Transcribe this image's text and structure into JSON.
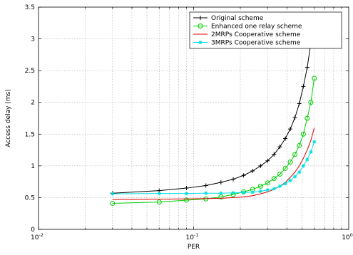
{
  "chart_data": {
    "type": "line",
    "title": "",
    "xlabel": "PER",
    "ylabel": "Access delay (ms)",
    "xscale": "log",
    "xlim": [
      0.01,
      1
    ],
    "ylim": [
      0,
      3.5
    ],
    "grid": true,
    "legend_position": "top-right",
    "x_ticks": [
      {
        "value": 0.01,
        "base": "10",
        "exp": "-2"
      },
      {
        "value": 0.1,
        "base": "10",
        "exp": "-1"
      },
      {
        "value": 1,
        "base": "10",
        "exp": "0"
      }
    ],
    "y_ticks": [
      {
        "value": 0,
        "label": "0"
      },
      {
        "value": 0.5,
        "label": "0.5"
      },
      {
        "value": 1,
        "label": "1"
      },
      {
        "value": 1.5,
        "label": "1.5"
      },
      {
        "value": 2,
        "label": "2"
      },
      {
        "value": 2.5,
        "label": "2.5"
      },
      {
        "value": 3,
        "label": "3"
      },
      {
        "value": 3.5,
        "label": "3.5"
      }
    ],
    "series": [
      {
        "name": "Original scheme",
        "color": "#000000",
        "marker": "plus",
        "x": [
          0.03,
          0.06,
          0.09,
          0.12,
          0.15,
          0.18,
          0.21,
          0.24,
          0.27,
          0.3,
          0.33,
          0.36,
          0.39,
          0.42,
          0.45,
          0.48,
          0.51,
          0.54,
          0.57,
          0.6
        ],
        "y": [
          0.57,
          0.61,
          0.65,
          0.69,
          0.74,
          0.79,
          0.85,
          0.92,
          1.0,
          1.08,
          1.18,
          1.3,
          1.43,
          1.58,
          1.76,
          1.98,
          2.25,
          2.55,
          2.93,
          3.37
        ]
      },
      {
        "name": "Enhanced one relay scheme",
        "color": "#00cc00",
        "marker": "circle",
        "x": [
          0.03,
          0.06,
          0.09,
          0.12,
          0.15,
          0.18,
          0.21,
          0.24,
          0.27,
          0.3,
          0.33,
          0.36,
          0.39,
          0.42,
          0.45,
          0.48,
          0.51,
          0.54,
          0.57,
          0.6
        ],
        "y": [
          0.41,
          0.43,
          0.46,
          0.48,
          0.51,
          0.55,
          0.59,
          0.63,
          0.68,
          0.73,
          0.8,
          0.87,
          0.96,
          1.06,
          1.18,
          1.32,
          1.5,
          1.75,
          2.0,
          2.38
        ]
      },
      {
        "name": "2MRPs Cooperative scheme",
        "color": "#dd0000",
        "marker": "none",
        "x": [
          0.03,
          0.06,
          0.09,
          0.12,
          0.15,
          0.18,
          0.21,
          0.24,
          0.27,
          0.3,
          0.33,
          0.36,
          0.39,
          0.42,
          0.45,
          0.48,
          0.51,
          0.54,
          0.57,
          0.6
        ],
        "y": [
          0.47,
          0.475,
          0.48,
          0.485,
          0.49,
          0.5,
          0.51,
          0.53,
          0.56,
          0.59,
          0.63,
          0.68,
          0.74,
          0.82,
          0.9,
          1.0,
          1.12,
          1.25,
          1.4,
          1.6
        ]
      },
      {
        "name": "3MRPs Cooperative scheme",
        "color": "#00e0e0",
        "marker": "star",
        "x": [
          0.03,
          0.06,
          0.09,
          0.12,
          0.15,
          0.18,
          0.21,
          0.24,
          0.27,
          0.3,
          0.33,
          0.36,
          0.39,
          0.42,
          0.45,
          0.48,
          0.51,
          0.54,
          0.57,
          0.6
        ],
        "y": [
          0.56,
          0.565,
          0.565,
          0.57,
          0.57,
          0.575,
          0.58,
          0.585,
          0.6,
          0.62,
          0.64,
          0.68,
          0.72,
          0.77,
          0.83,
          0.9,
          1.0,
          1.1,
          1.22,
          1.38
        ]
      }
    ]
  }
}
